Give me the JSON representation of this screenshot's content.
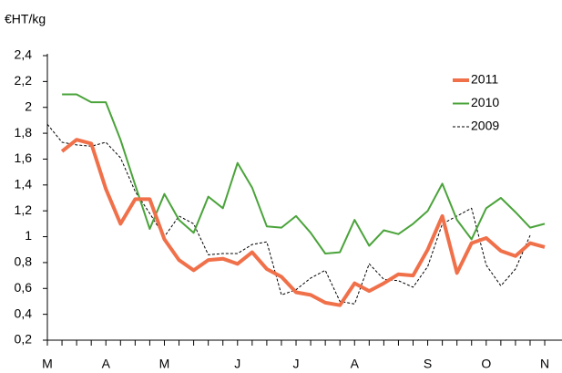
{
  "chart_data": {
    "type": "line",
    "y_label": "€HT/kg",
    "categories": [
      "M",
      null,
      null,
      null,
      "A",
      null,
      null,
      null,
      "M",
      null,
      null,
      null,
      null,
      "J",
      null,
      null,
      null,
      "J",
      null,
      null,
      null,
      "A",
      null,
      null,
      null,
      null,
      "S",
      null,
      null,
      null,
      "O",
      null,
      null,
      null,
      "N"
    ],
    "series": [
      {
        "name": "2011",
        "color": "#f0704a",
        "width": 4,
        "dashed": false,
        "values": [
          null,
          1.66,
          1.75,
          1.72,
          1.37,
          1.1,
          1.29,
          1.29,
          0.98,
          0.82,
          0.74,
          0.82,
          0.83,
          0.79,
          0.88,
          0.75,
          0.69,
          0.57,
          0.55,
          0.49,
          0.47,
          0.64,
          0.58,
          0.64,
          0.71,
          0.7,
          0.9,
          1.16,
          0.72,
          0.95,
          0.99,
          0.89,
          0.85,
          0.95,
          0.92
        ]
      },
      {
        "name": "2010",
        "color": "#4aa33a",
        "width": 2,
        "dashed": false,
        "values": [
          null,
          2.1,
          2.1,
          2.04,
          2.04,
          1.75,
          1.4,
          1.06,
          1.33,
          1.13,
          1.03,
          1.31,
          1.22,
          1.57,
          1.38,
          1.08,
          1.07,
          1.16,
          1.03,
          0.87,
          0.88,
          1.13,
          0.93,
          1.05,
          1.02,
          1.1,
          1.2,
          1.41,
          1.13,
          0.98,
          1.22,
          1.3,
          1.19,
          1.07,
          1.1
        ]
      },
      {
        "name": "2009",
        "color": "#000000",
        "width": 1,
        "dashed": true,
        "values": [
          1.87,
          1.73,
          1.71,
          1.7,
          1.73,
          1.61,
          1.35,
          1.18,
          1.0,
          1.16,
          1.1,
          0.86,
          0.87,
          0.87,
          0.94,
          0.96,
          0.55,
          0.59,
          0.68,
          0.74,
          0.5,
          0.48,
          0.79,
          0.67,
          0.66,
          0.61,
          0.77,
          1.1,
          1.16,
          1.22,
          0.78,
          0.62,
          0.75,
          1.01,
          null
        ]
      }
    ],
    "ylim": [
      0.2,
      2.4
    ],
    "yticks": [
      {
        "value": 0.2,
        "label": "0,2"
      },
      {
        "value": 0.4,
        "label": "0,4"
      },
      {
        "value": 0.6,
        "label": "0,6"
      },
      {
        "value": 0.8,
        "label": "0,8"
      },
      1,
      {
        "value": 1.2,
        "label": "1,2"
      },
      {
        "value": 1.4,
        "label": "1,4"
      },
      {
        "value": 1.6,
        "label": "1,6"
      },
      {
        "value": 1.8,
        "label": "1,8"
      },
      2,
      {
        "value": 2.2,
        "label": "2,2"
      },
      {
        "value": 2.4,
        "label": "2,4"
      }
    ],
    "grid": false
  }
}
